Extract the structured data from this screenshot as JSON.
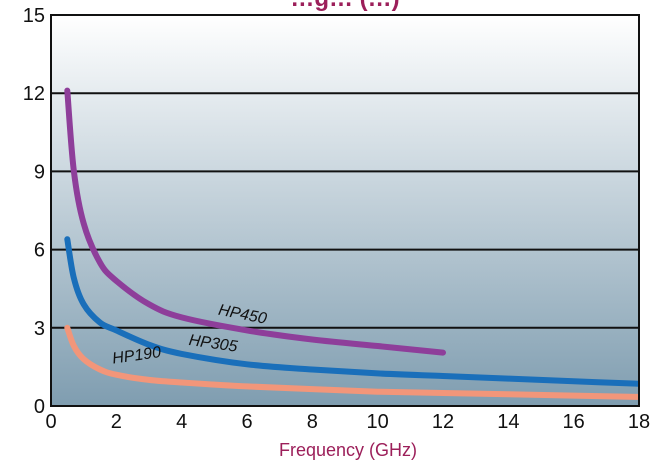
{
  "chart_data": {
    "type": "line",
    "title": "…g… (…)",
    "xlabel": "Frequency (GHz)",
    "ylabel": "",
    "xlim": [
      0,
      18
    ],
    "ylim": [
      0,
      15
    ],
    "xticks": [
      0,
      2,
      4,
      6,
      8,
      10,
      12,
      14,
      16,
      18
    ],
    "yticks": [
      0,
      3,
      6,
      9,
      12,
      15
    ],
    "grid": "horizontal",
    "colors": {
      "title": "#9c1f5a",
      "xlabel": "#9c1f5a",
      "background_top": "#ffffff",
      "background_bottom": "#7f9db0"
    },
    "series": [
      {
        "name": "HP450",
        "color": "#8e3e9a",
        "x": [
          0.5,
          0.7,
          1,
          1.5,
          2,
          3,
          4,
          6,
          8,
          10,
          12
        ],
        "y": [
          12.1,
          9.0,
          7.0,
          5.5,
          4.8,
          3.9,
          3.4,
          2.9,
          2.55,
          2.3,
          2.05
        ]
      },
      {
        "name": "HP305",
        "color": "#1a6fba",
        "x": [
          0.5,
          0.7,
          1,
          1.5,
          2,
          3,
          4,
          6,
          8,
          10,
          12,
          14,
          16,
          18
        ],
        "y": [
          6.4,
          4.9,
          3.9,
          3.2,
          2.9,
          2.35,
          2.0,
          1.6,
          1.4,
          1.25,
          1.15,
          1.05,
          0.95,
          0.85
        ]
      },
      {
        "name": "HP190",
        "color": "#f2967a",
        "x": [
          0.5,
          0.7,
          1,
          1.5,
          2,
          3,
          4,
          6,
          8,
          10,
          12,
          14,
          16,
          18
        ],
        "y": [
          3.0,
          2.3,
          1.8,
          1.4,
          1.2,
          1.0,
          0.9,
          0.75,
          0.65,
          0.55,
          0.5,
          0.45,
          0.4,
          0.35
        ]
      }
    ]
  }
}
